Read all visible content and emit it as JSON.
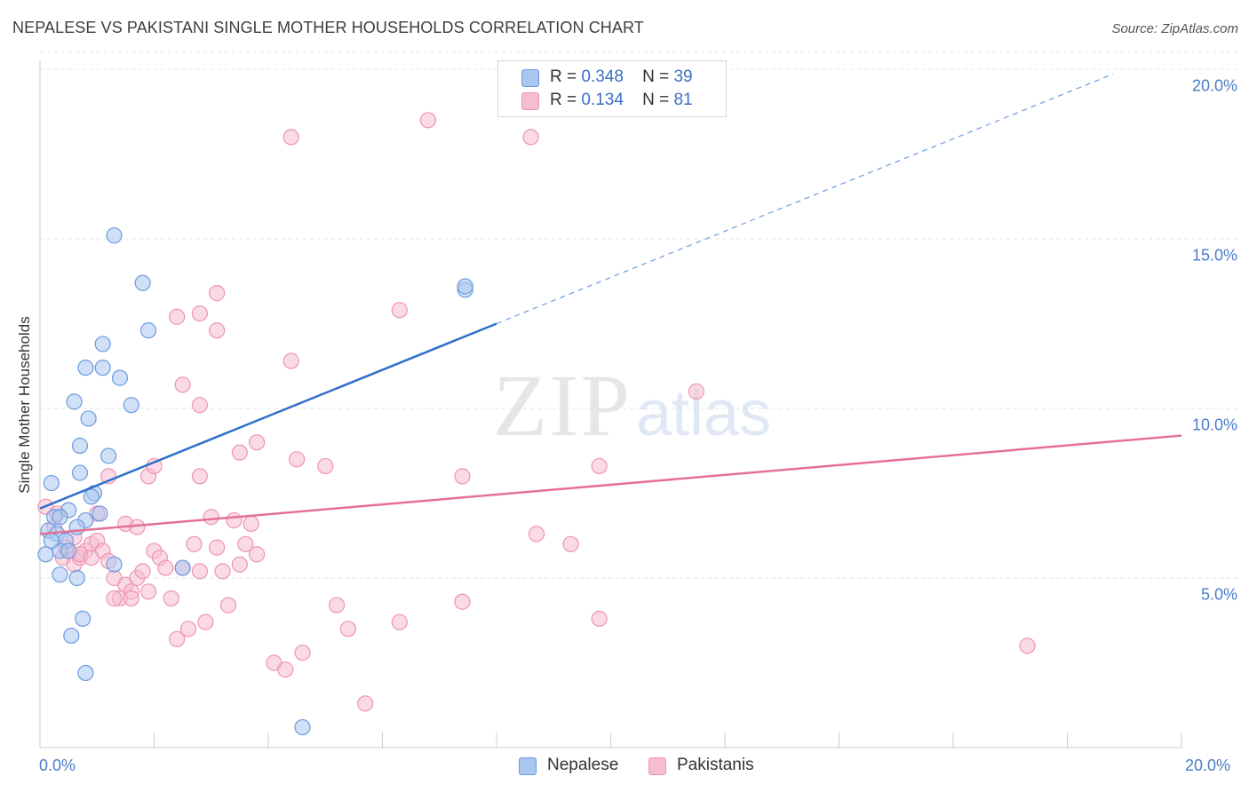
{
  "title": "NEPALESE VS PAKISTANI SINGLE MOTHER HOUSEHOLDS CORRELATION CHART",
  "source": "Source: ZipAtlas.com",
  "watermark": {
    "zip": "ZIP",
    "atlas": "atlas"
  },
  "colors": {
    "blue_fill": "#a9c6ef",
    "blue_stroke": "#6d9be0",
    "blue_line": "#2f6fcb",
    "pink_fill": "#f6bdd0",
    "pink_stroke": "#ee94b2",
    "pink_line": "#e4709a",
    "grid": "#e3e3e3",
    "tick_text": "#4a7cc9"
  },
  "legend": {
    "rows": [
      {
        "r_label": "R =",
        "r_value": "0.348",
        "n_label": "N =",
        "n_value": "39",
        "series": "Nepalese"
      },
      {
        "r_label": "R =",
        "r_value": "0.134",
        "n_label": "N =",
        "n_value": "81",
        "series": "Pakistanis"
      }
    ]
  },
  "bottom_legend": [
    "Nepalese",
    "Pakistanis"
  ],
  "chart_data": {
    "type": "scatter",
    "title": "NEPALESE VS PAKISTANI SINGLE MOTHER HOUSEHOLDS CORRELATION CHART",
    "xlabel": "",
    "ylabel": "Single Mother Households",
    "xlim": [
      0,
      20
    ],
    "ylim": [
      0,
      20.5
    ],
    "x_tick_labels": [
      "0.0%",
      "20.0%"
    ],
    "y_ticks": [
      5,
      10,
      15,
      20
    ],
    "y_tick_labels": [
      "5.0%",
      "10.0%",
      "15.0%",
      "20.0%"
    ],
    "grid": true,
    "legend_position": "top-center",
    "series": [
      {
        "name": "Nepalese",
        "points": [
          [
            1.3,
            15.1
          ],
          [
            1.8,
            13.7
          ],
          [
            1.9,
            12.3
          ],
          [
            1.1,
            11.9
          ],
          [
            0.8,
            11.2
          ],
          [
            1.1,
            11.2
          ],
          [
            1.4,
            10.9
          ],
          [
            0.6,
            10.2
          ],
          [
            1.6,
            10.1
          ],
          [
            0.85,
            9.7
          ],
          [
            0.7,
            8.9
          ],
          [
            1.2,
            8.6
          ],
          [
            0.7,
            8.1
          ],
          [
            0.2,
            7.8
          ],
          [
            0.95,
            7.5
          ],
          [
            0.9,
            7.4
          ],
          [
            0.5,
            7.0
          ],
          [
            1.05,
            6.9
          ],
          [
            0.25,
            6.8
          ],
          [
            0.35,
            6.8
          ],
          [
            0.8,
            6.7
          ],
          [
            0.65,
            6.5
          ],
          [
            0.15,
            6.4
          ],
          [
            0.3,
            6.3
          ],
          [
            0.45,
            6.1
          ],
          [
            0.1,
            5.7
          ],
          [
            0.35,
            5.8
          ],
          [
            0.5,
            5.8
          ],
          [
            1.3,
            5.4
          ],
          [
            2.5,
            5.3
          ],
          [
            0.35,
            5.1
          ],
          [
            0.65,
            5.0
          ],
          [
            0.75,
            3.8
          ],
          [
            0.55,
            3.3
          ],
          [
            0.8,
            2.2
          ],
          [
            7.45,
            13.5
          ],
          [
            7.45,
            13.6
          ],
          [
            4.6,
            0.6
          ],
          [
            0.2,
            6.1
          ]
        ]
      },
      {
        "name": "Pakistanis",
        "points": [
          [
            0.1,
            7.1
          ],
          [
            0.3,
            6.9
          ],
          [
            0.4,
            5.6
          ],
          [
            0.5,
            5.8
          ],
          [
            0.6,
            5.4
          ],
          [
            0.7,
            5.6
          ],
          [
            0.8,
            5.8
          ],
          [
            0.9,
            6.0
          ],
          [
            1.0,
            6.1
          ],
          [
            1.1,
            5.8
          ],
          [
            1.2,
            5.5
          ],
          [
            1.3,
            5.0
          ],
          [
            1.4,
            4.4
          ],
          [
            1.5,
            4.8
          ],
          [
            1.6,
            4.6
          ],
          [
            1.7,
            5.0
          ],
          [
            1.8,
            5.2
          ],
          [
            1.9,
            4.6
          ],
          [
            2.0,
            5.8
          ],
          [
            2.1,
            5.6
          ],
          [
            2.2,
            5.3
          ],
          [
            2.3,
            4.4
          ],
          [
            2.4,
            3.2
          ],
          [
            2.5,
            5.3
          ],
          [
            2.6,
            3.5
          ],
          [
            2.7,
            6.0
          ],
          [
            2.8,
            5.2
          ],
          [
            2.9,
            3.7
          ],
          [
            3.0,
            6.8
          ],
          [
            3.1,
            5.9
          ],
          [
            3.2,
            5.2
          ],
          [
            3.3,
            4.2
          ],
          [
            3.4,
            6.7
          ],
          [
            3.5,
            5.4
          ],
          [
            3.6,
            6.0
          ],
          [
            3.7,
            6.6
          ],
          [
            3.8,
            5.7
          ],
          [
            1.0,
            6.9
          ],
          [
            1.2,
            8.0
          ],
          [
            1.5,
            6.6
          ],
          [
            1.9,
            8.0
          ],
          [
            2.0,
            8.3
          ],
          [
            1.7,
            6.5
          ],
          [
            2.4,
            12.7
          ],
          [
            2.5,
            10.7
          ],
          [
            2.8,
            10.1
          ],
          [
            2.8,
            8.0
          ],
          [
            2.8,
            12.8
          ],
          [
            3.1,
            12.3
          ],
          [
            3.1,
            13.4
          ],
          [
            3.5,
            8.7
          ],
          [
            3.8,
            9.0
          ],
          [
            4.4,
            11.4
          ],
          [
            4.5,
            8.5
          ],
          [
            4.6,
            2.8
          ],
          [
            4.4,
            18.0
          ],
          [
            5.0,
            8.3
          ],
          [
            5.2,
            4.2
          ],
          [
            5.4,
            3.5
          ],
          [
            5.7,
            1.3
          ],
          [
            6.3,
            12.9
          ],
          [
            6.3,
            3.7
          ],
          [
            6.8,
            18.5
          ],
          [
            7.4,
            8.0
          ],
          [
            7.4,
            4.3
          ],
          [
            8.6,
            18.0
          ],
          [
            8.7,
            6.3
          ],
          [
            9.3,
            6.0
          ],
          [
            9.8,
            8.3
          ],
          [
            9.8,
            3.8
          ],
          [
            11.5,
            10.5
          ],
          [
            17.3,
            3.0
          ],
          [
            4.1,
            2.5
          ],
          [
            4.3,
            2.3
          ],
          [
            0.6,
            6.2
          ],
          [
            0.25,
            6.5
          ],
          [
            0.7,
            5.7
          ],
          [
            1.3,
            4.4
          ],
          [
            1.6,
            4.4
          ],
          [
            0.9,
            5.6
          ],
          [
            0.45,
            5.9
          ]
        ]
      }
    ],
    "trendlines": [
      {
        "series": "Nepalese",
        "x_start": 0,
        "y_start": 7.05,
        "x_end": 8.0,
        "y_end": 12.5,
        "dashed_to_x": 18.8
      },
      {
        "series": "Pakistanis",
        "x_start": 0,
        "y_start": 6.3,
        "x_end": 20,
        "y_end": 9.2
      }
    ]
  }
}
